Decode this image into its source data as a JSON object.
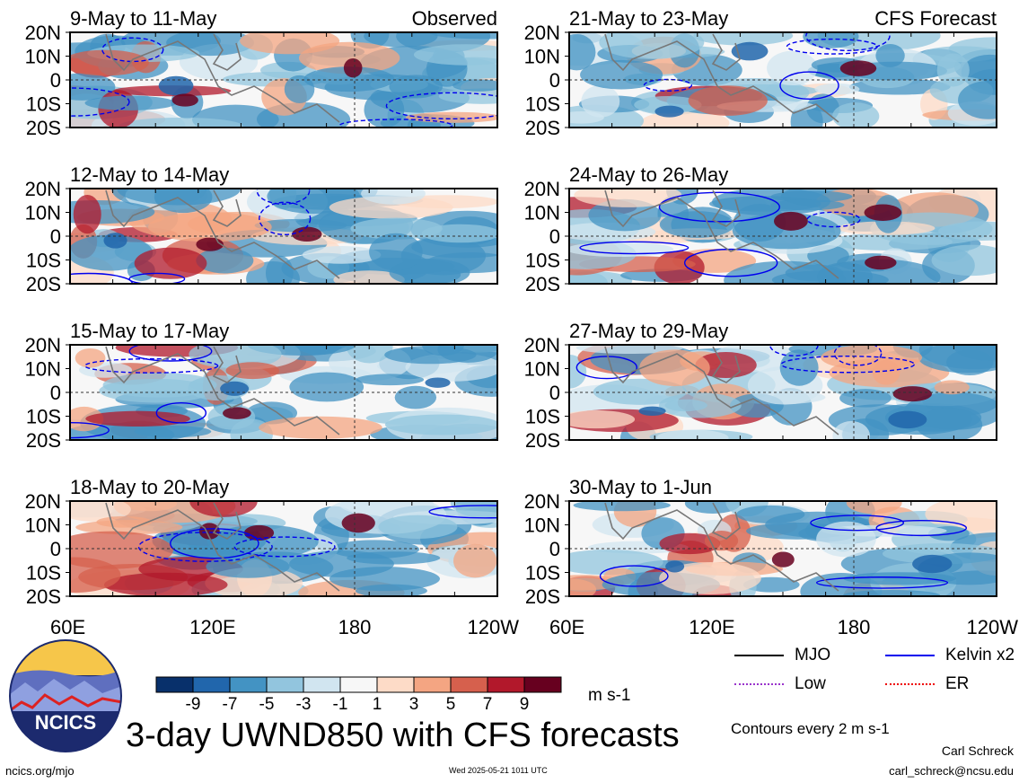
{
  "header": {
    "observed_label": "Observed",
    "forecast_label": "CFS Forecast"
  },
  "panels_observed": [
    {
      "date_range": "9-May to 11-May"
    },
    {
      "date_range": "12-May to 14-May"
    },
    {
      "date_range": "15-May to 17-May"
    },
    {
      "date_range": "18-May to 20-May"
    }
  ],
  "panels_forecast": [
    {
      "date_range": "21-May to 23-May"
    },
    {
      "date_range": "24-May to 26-May"
    },
    {
      "date_range": "27-May to 29-May"
    },
    {
      "date_range": "30-May to 1-Jun"
    }
  ],
  "axes": {
    "lat_ticks": [
      "20N",
      "10N",
      "0",
      "10S",
      "20S"
    ],
    "lon_ticks": [
      "60E",
      "120E",
      "180",
      "120W"
    ]
  },
  "colorbar": {
    "labels": [
      "-9",
      "-7",
      "-5",
      "-3",
      "-1",
      "1",
      "3",
      "5",
      "7",
      "9"
    ],
    "colors": [
      "#08306b",
      "#2166ac",
      "#4393c3",
      "#92c5de",
      "#d1e5f0",
      "#f7f7f7",
      "#fddbc7",
      "#f4a582",
      "#d6604d",
      "#b2182b",
      "#67001f"
    ],
    "units": "m s-1"
  },
  "legend": {
    "mjo": "MJO",
    "kelvin": "Kelvin x2",
    "low": "Low",
    "er": "ER",
    "mjo_color": "#000000",
    "kelvin_color": "#0000ee",
    "low_color": "#9933cc",
    "er_color": "#ee0000"
  },
  "contour_note": "Contours every 2 m s-1",
  "logo_text": "NCICS",
  "main_title": "3-day UWND850 with CFS forecasts",
  "footer": {
    "url": "ncics.org/mjo",
    "timestamp": "Wed 2025-05-21 1011 UTC",
    "author": "Carl Schreck",
    "email": "carl_schreck@ncsu.edu"
  }
}
